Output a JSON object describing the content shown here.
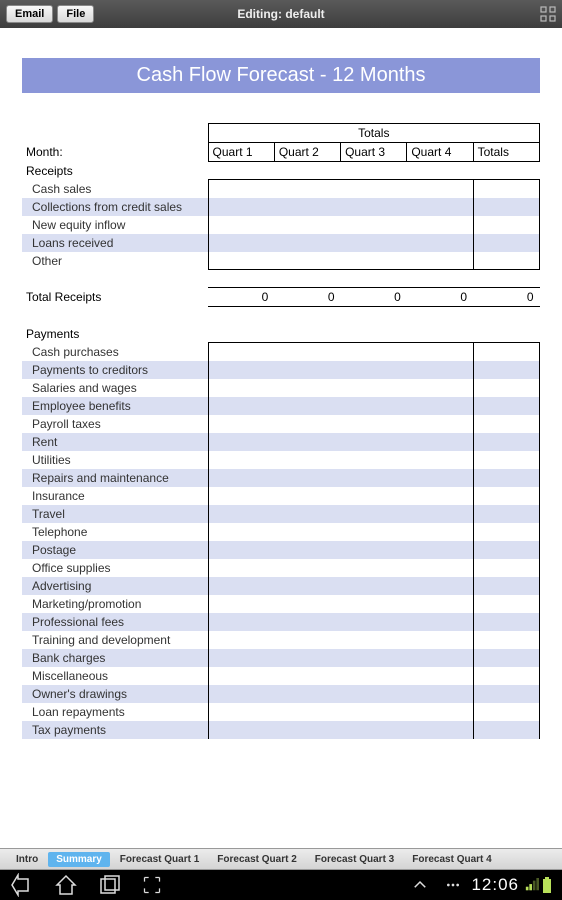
{
  "topbar": {
    "email": "Email",
    "file": "File",
    "title": "Editing: default"
  },
  "banner": "Cash Flow Forecast - 12 Months",
  "headers": {
    "totals": "Totals",
    "month": "Month:",
    "q1": "Quart 1",
    "q2": "Quart 2",
    "q3": "Quart 3",
    "q4": "Quart 4",
    "tot": "Totals"
  },
  "receipts": {
    "heading": "Receipts",
    "rows": [
      "Cash sales",
      "Collections from credit sales",
      "New equity inflow",
      "Loans received",
      "Other"
    ],
    "total_label": "Total Receipts",
    "totals": [
      "0",
      "0",
      "0",
      "0",
      "0"
    ]
  },
  "payments": {
    "heading": "Payments",
    "rows": [
      "Cash purchases",
      "Payments to creditors",
      "Salaries and wages",
      "Employee benefits",
      "Payroll taxes",
      "Rent",
      "Utilities",
      "Repairs and maintenance",
      "Insurance",
      "Travel",
      "Telephone",
      "Postage",
      "Office supplies",
      "Advertising",
      "Marketing/promotion",
      "Professional fees",
      "Training and development",
      "Bank charges",
      "Miscellaneous",
      "Owner's drawings",
      "Loan repayments",
      "Tax payments"
    ]
  },
  "tabs": [
    "Intro",
    "Summary",
    "Forecast Quart 1",
    "Forecast Quart 2",
    "Forecast Quart 3",
    "Forecast Quart 4"
  ],
  "active_tab": 1,
  "clock": "12:06",
  "colors": {
    "banner_bg": "#8a96d8",
    "stripe": "#dadff2",
    "tab_active": "#5fb4ee"
  }
}
